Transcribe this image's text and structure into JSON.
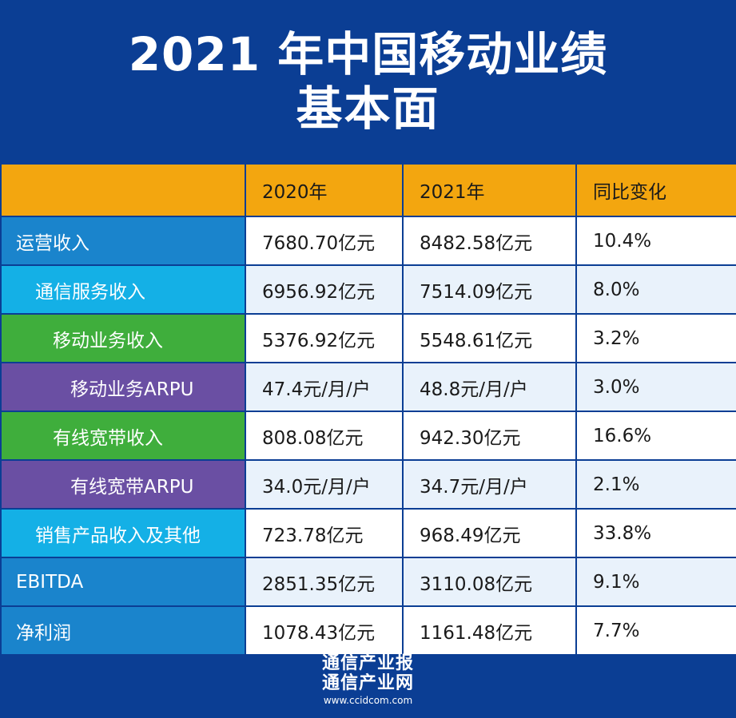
{
  "title": {
    "line1": "2021 年中国移动业绩",
    "line2": "基本面"
  },
  "table": {
    "headers": [
      "",
      "2020年",
      "2021年",
      "同比变化"
    ],
    "rows": [
      {
        "label": "运营收入",
        "level": 0,
        "color": "#1a84cc",
        "v2020": "7680.70亿元",
        "v2021": "8482.58亿元",
        "change": "10.4%"
      },
      {
        "label": "通信服务收入",
        "level": 1,
        "color": "#14b0e6",
        "v2020": "6956.92亿元",
        "v2021": "7514.09亿元",
        "change": "8.0%"
      },
      {
        "label": "移动业务收入",
        "level": 2,
        "color": "#3fae3c",
        "v2020": "5376.92亿元",
        "v2021": "5548.61亿元",
        "change": "3.2%"
      },
      {
        "label": "移动业务ARPU",
        "level": 3,
        "color": "#6a4fa3",
        "v2020": "47.4元/月/户",
        "v2021": "48.8元/月/户",
        "change": "3.0%"
      },
      {
        "label": "有线宽带收入",
        "level": 2,
        "color": "#3fae3c",
        "v2020": "808.08亿元",
        "v2021": "942.30亿元",
        "change": "16.6%"
      },
      {
        "label": "有线宽带ARPU",
        "level": 3,
        "color": "#6a4fa3",
        "v2020": "34.0元/月/户",
        "v2021": "34.7元/月/户",
        "change": "2.1%"
      },
      {
        "label": "销售产品收入及其他",
        "level": 1,
        "color": "#14b0e6",
        "v2020": "723.78亿元",
        "v2021": "968.49亿元",
        "change": "33.8%"
      },
      {
        "label": "EBITDA",
        "level": 0,
        "color": "#1a84cc",
        "v2020": "2851.35亿元",
        "v2021": "3110.08亿元",
        "change": "9.1%"
      },
      {
        "label": "净利润",
        "level": 0,
        "color": "#1a84cc",
        "v2020": "1078.43亿元",
        "v2021": "1161.48亿元",
        "change": "7.7%"
      }
    ]
  },
  "footer": {
    "line1": "通信产业报",
    "line2": "通信产业网",
    "url": "www.ccidcom.com"
  }
}
